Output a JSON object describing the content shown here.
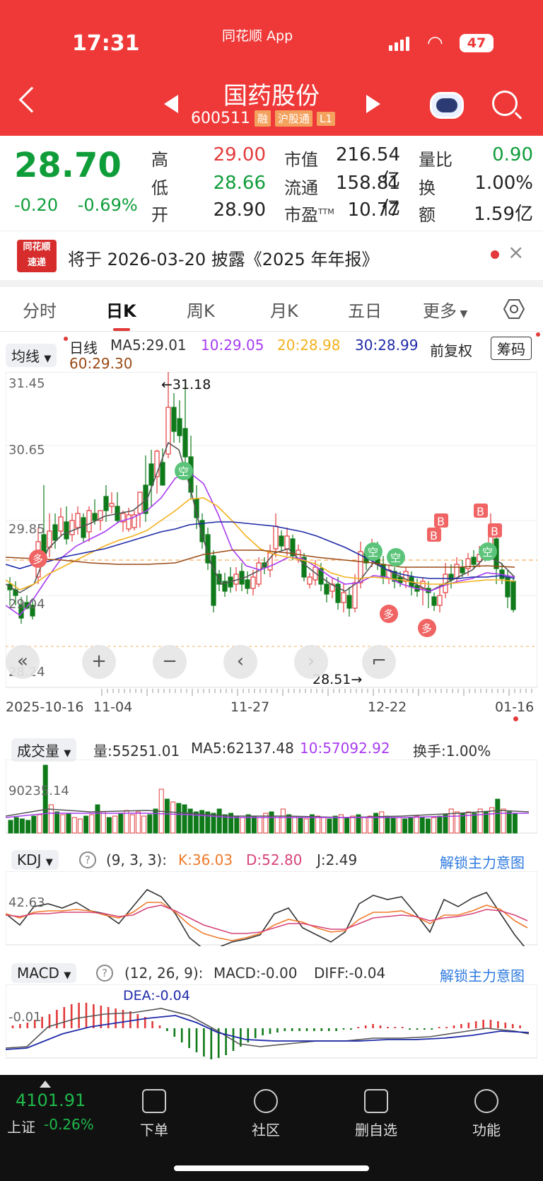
{
  "status_bar": {
    "time": "17:31",
    "app": "同花顺 App",
    "battery": "47"
  },
  "header": {
    "title": "国药股份",
    "code": "600511",
    "tags": [
      "融",
      "沪股通",
      "L1"
    ]
  },
  "quote": {
    "price": "28.70",
    "change": "-0.20",
    "change_pct": "-0.69%",
    "cells": [
      {
        "label": "高",
        "value": "29.00",
        "color": "#e23a3a"
      },
      {
        "label": "低",
        "value": "28.66",
        "color": "#0f9d3a"
      },
      {
        "label": "开",
        "value": "28.90",
        "color": "#222222"
      },
      {
        "label": "市值",
        "value": "216.54亿",
        "color": "#222222"
      },
      {
        "label": "流通",
        "value": "158.81亿",
        "color": "#222222"
      },
      {
        "label": "市盈",
        "sup": "TTM",
        "value": "10.77",
        "color": "#222222"
      },
      {
        "label": "量比",
        "value": "0.90",
        "color": "#0f9d3a"
      },
      {
        "label": "换",
        "value": "1.00%",
        "color": "#222222"
      },
      {
        "label": "额",
        "value": "1.59亿",
        "color": "#222222"
      }
    ]
  },
  "notice": {
    "logo_line1": "同花顺",
    "logo_line2": "速递",
    "text": "将于 2026-03-20 披露《2025 年年报》"
  },
  "tabs": {
    "items": [
      "分时",
      "日K",
      "周K",
      "月K",
      "五日",
      "更多"
    ],
    "active": 1
  },
  "ma_legend": {
    "dropdown": "均线",
    "label": "日线",
    "ma5": "MA5:29.01",
    "ma10": "10:29.05",
    "ma20": "20:28.98",
    "ma30": "30:28.99",
    "ma60": "60:29.30",
    "adjust": "前复权",
    "chips_button": "筹码"
  },
  "kline": {
    "y_ticks": [
      "31.45",
      "30.65",
      "29.85",
      "29.04",
      "28.24"
    ],
    "high_label": "←31.18",
    "low_label": "28.51→",
    "x_labels": [
      "2025-10-16",
      "11-04",
      "11-27",
      "12-22",
      "01-16"
    ],
    "markers": {
      "B": "B",
      "kong": "空",
      "duo": "多"
    }
  },
  "volume": {
    "dropdown": "成交量",
    "vol": "量:55251.01",
    "ma5": "MA5:62137.48",
    "ma10": "10:57092.92",
    "turnover": "换手:1.00%",
    "y_tick": "90235.14"
  },
  "kdj": {
    "dropdown": "KDJ",
    "params": "(9, 3, 3):",
    "k": "K:36.03",
    "d": "D:52.80",
    "j": "J:2.49",
    "unlock": "解锁主力意图",
    "y_tick": "42.63"
  },
  "macd": {
    "dropdown": "MACD",
    "params": "(12, 26, 9):",
    "macd": "MACD:-0.00",
    "diff": "DIFF:-0.04",
    "dea": "DEA:-0.04",
    "unlock": "解锁主力意图",
    "y_tick": "-0.01"
  },
  "bottom_bar": {
    "index_value": "4101.91",
    "index_name": "上证",
    "index_change": "-0.26%",
    "items": [
      "下单",
      "社区",
      "删自选",
      "功能"
    ]
  },
  "chart_data": {
    "type": "candlestick",
    "ylim": [
      28.24,
      31.45
    ],
    "x_labels": [
      "2025-10-16",
      "11-04",
      "11-27",
      "12-22",
      "01-16"
    ],
    "max_label": "31.18",
    "min_label": "28.51",
    "last_close": 28.7
  },
  "colors": {
    "up": "#e23a3a",
    "down": "#0f7a1a",
    "ma5": "#555555",
    "ma10": "#a83cf0",
    "ma20": "#f2b11d",
    "ma30": "#1f2aa8",
    "ma60": "#9a4a16"
  }
}
